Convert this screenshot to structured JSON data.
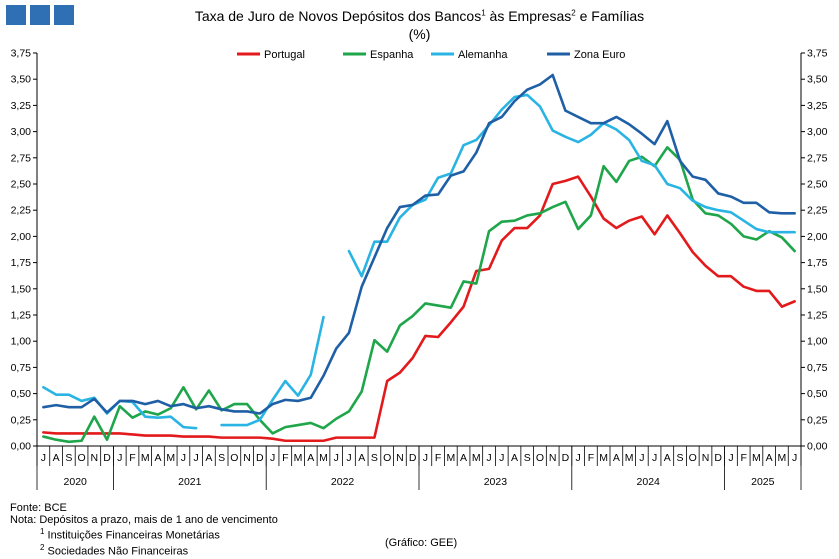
{
  "header": {
    "title_parts": [
      "Taxa de Juro de Novos Depósitos dos Bancos",
      "1",
      " às Empresas",
      "2",
      " e Famílias"
    ],
    "unit": "(%)"
  },
  "logo": {
    "color": "#2f6fb3"
  },
  "footer": {
    "source": "Fonte: BCE",
    "note": "Nota: Depósitos a prazo, mais de 1 ano de vencimento",
    "fn1_mark": "1",
    "fn1": " Instituições Financeiras Monetárias",
    "fn2_mark": "2",
    "fn2": " Sociedades Não Financeiras",
    "credit": "(Gráfico: GEE)"
  },
  "chart_data": {
    "type": "line",
    "ylim": [
      0,
      3.75
    ],
    "y_ticks": [
      "0,00",
      "0,25",
      "0,50",
      "0,75",
      "1,00",
      "1,25",
      "1,50",
      "1,75",
      "2,00",
      "2,25",
      "2,50",
      "2,75",
      "3,00",
      "3,25",
      "3,50",
      "3,75"
    ],
    "grid": false,
    "legend_position": "top",
    "month_labels": [
      "J",
      "A",
      "S",
      "O",
      "N",
      "D",
      "J",
      "F",
      "M",
      "A",
      "M",
      "J",
      "J",
      "A",
      "S",
      "O",
      "N",
      "D",
      "J",
      "F",
      "M",
      "A",
      "M",
      "J",
      "J",
      "A",
      "S",
      "O",
      "N",
      "D",
      "J",
      "F",
      "M",
      "A",
      "M",
      "J",
      "J",
      "A",
      "S",
      "O",
      "N",
      "D",
      "J",
      "F",
      "M",
      "A",
      "M",
      "J",
      "J",
      "A",
      "S",
      "O",
      "N",
      "D",
      "J",
      "F",
      "M",
      "A",
      "M",
      "J"
    ],
    "years": [
      {
        "label": "2020",
        "start": 0,
        "end": 6
      },
      {
        "label": "2021",
        "start": 6,
        "end": 18
      },
      {
        "label": "2022",
        "start": 18,
        "end": 30
      },
      {
        "label": "2023",
        "start": 30,
        "end": 42
      },
      {
        "label": "2024",
        "start": 42,
        "end": 54
      },
      {
        "label": "2025",
        "start": 54,
        "end": 60
      }
    ],
    "series": [
      {
        "name": "Portugal",
        "color": "#e31a1c",
        "values": [
          0.13,
          0.12,
          0.12,
          0.12,
          0.12,
          0.12,
          0.12,
          0.11,
          0.1,
          0.1,
          0.1,
          0.09,
          0.09,
          0.09,
          0.08,
          0.08,
          0.08,
          0.08,
          0.07,
          0.05,
          0.05,
          0.05,
          0.05,
          0.08,
          0.08,
          0.08,
          0.08,
          0.62,
          0.7,
          0.84,
          1.05,
          1.04,
          1.18,
          1.33,
          1.67,
          1.69,
          1.96,
          2.08,
          2.08,
          2.2,
          2.5,
          2.53,
          2.57,
          2.38,
          2.17,
          2.08,
          2.15,
          2.19,
          2.02,
          2.2,
          2.03,
          1.85,
          1.72,
          1.62,
          1.62,
          1.52,
          1.48,
          1.48,
          1.33,
          1.38
        ]
      },
      {
        "name": "Espanha",
        "color": "#1fa64a",
        "values": [
          0.09,
          0.06,
          0.04,
          0.05,
          0.28,
          0.06,
          0.38,
          0.27,
          0.33,
          0.3,
          0.36,
          0.56,
          0.35,
          0.53,
          0.34,
          0.4,
          0.4,
          0.25,
          0.12,
          0.18,
          0.2,
          0.22,
          0.17,
          0.26,
          0.33,
          0.52,
          1.01,
          0.9,
          1.15,
          1.24,
          1.36,
          1.34,
          1.32,
          1.57,
          1.55,
          2.05,
          2.14,
          2.15,
          2.2,
          2.22,
          2.28,
          2.33,
          2.07,
          2.2,
          2.67,
          2.52,
          2.72,
          2.76,
          2.67,
          2.85,
          2.73,
          2.35,
          2.22,
          2.2,
          2.12,
          2.0,
          1.97,
          2.05,
          1.99,
          1.86
        ]
      },
      {
        "name": "Alemanha",
        "color": "#29b4e3",
        "values": [
          0.56,
          0.49,
          0.49,
          0.43,
          0.46,
          0.31,
          0.43,
          0.42,
          0.28,
          0.27,
          0.28,
          0.18,
          0.17,
          null,
          0.2,
          0.2,
          0.2,
          0.25,
          0.44,
          0.62,
          0.48,
          0.68,
          1.23,
          null,
          1.86,
          1.62,
          1.95,
          1.95,
          2.18,
          2.3,
          2.35,
          2.56,
          2.6,
          2.87,
          2.92,
          3.06,
          3.21,
          3.33,
          3.35,
          3.24,
          3.01,
          2.95,
          2.9,
          2.97,
          3.08,
          3.02,
          2.92,
          2.72,
          2.68,
          2.5,
          2.46,
          2.34,
          2.28,
          2.25,
          2.23,
          2.15,
          2.07,
          2.04,
          2.04,
          2.04
        ]
      },
      {
        "name": "Zona Euro",
        "color": "#1f5fa6",
        "values": [
          0.37,
          0.39,
          0.37,
          0.37,
          0.45,
          0.32,
          0.43,
          0.43,
          0.4,
          0.43,
          0.38,
          0.4,
          0.36,
          0.38,
          0.35,
          0.33,
          0.33,
          0.31,
          0.4,
          0.44,
          0.43,
          0.46,
          0.67,
          0.93,
          1.08,
          1.52,
          1.8,
          2.08,
          2.28,
          2.3,
          2.39,
          2.4,
          2.58,
          2.62,
          2.8,
          3.08,
          3.14,
          3.29,
          3.4,
          3.45,
          3.54,
          3.2,
          3.14,
          3.08,
          3.08,
          3.14,
          3.07,
          2.98,
          2.88,
          3.1,
          2.72,
          2.57,
          2.54,
          2.41,
          2.38,
          2.32,
          2.32,
          2.23,
          2.22,
          2.22
        ]
      }
    ]
  }
}
